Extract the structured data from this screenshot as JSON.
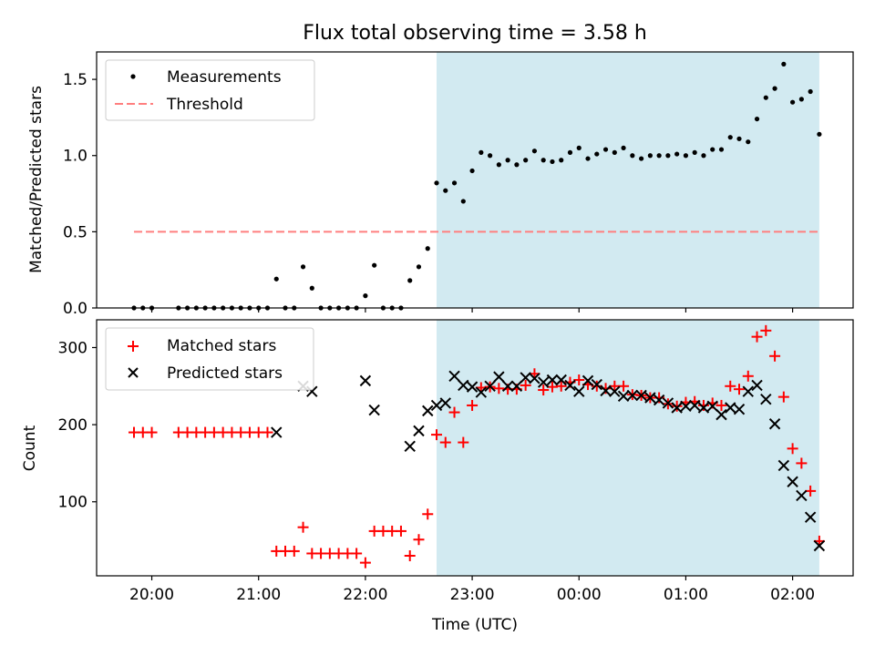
{
  "title": "Flux total observing time = 3.58 h",
  "xlabel": "Time (UTC)",
  "x_ticks": [
    "20:00",
    "21:00",
    "22:00",
    "23:00",
    "00:00",
    "01:00",
    "02:00"
  ],
  "colors": {
    "shade": "#add8e6",
    "threshold": "#ff7f7f",
    "measurements": "#000000",
    "matched": "#ff0000",
    "predicted": "#000000"
  },
  "chart_data": [
    {
      "type": "scatter",
      "panel": "top",
      "ylabel": "Matched/Predicted stars",
      "xlim": [
        "19:29",
        "26:34"
      ],
      "ylim": [
        0,
        1.68
      ],
      "y_ticks": [
        "0.0",
        "0.5",
        "1.0",
        "1.5"
      ],
      "legend_position": "upper-left",
      "legend": [
        "Measurements",
        "Threshold"
      ],
      "shaded_region": [
        "22:40",
        "26:15"
      ],
      "threshold": {
        "name": "Threshold",
        "y": 0.5,
        "x": [
          "19:50",
          "26:15"
        ]
      },
      "series": [
        {
          "name": "Measurements",
          "marker": "dot",
          "points": [
            [
              "19:50",
              0
            ],
            [
              "19:55",
              0
            ],
            [
              "20:00",
              0
            ],
            [
              "20:15",
              0
            ],
            [
              "20:20",
              0
            ],
            [
              "20:25",
              0
            ],
            [
              "20:30",
              0
            ],
            [
              "20:35",
              0
            ],
            [
              "20:40",
              0
            ],
            [
              "20:45",
              0
            ],
            [
              "20:50",
              0
            ],
            [
              "20:55",
              0
            ],
            [
              "21:00",
              0
            ],
            [
              "21:05",
              0
            ],
            [
              "21:10",
              0.19
            ],
            [
              "21:15",
              0
            ],
            [
              "21:20",
              0
            ],
            [
              "21:25",
              0.27
            ],
            [
              "21:30",
              0.13
            ],
            [
              "21:35",
              0
            ],
            [
              "21:40",
              0
            ],
            [
              "21:45",
              0
            ],
            [
              "21:50",
              0
            ],
            [
              "21:55",
              0
            ],
            [
              "22:00",
              0.08
            ],
            [
              "22:05",
              0.28
            ],
            [
              "22:10",
              0
            ],
            [
              "22:15",
              0
            ],
            [
              "22:20",
              0
            ],
            [
              "22:25",
              0.18
            ],
            [
              "22:30",
              0.27
            ],
            [
              "22:35",
              0.39
            ],
            [
              "22:40",
              0.82
            ],
            [
              "22:45",
              0.77
            ],
            [
              "22:50",
              0.82
            ],
            [
              "22:55",
              0.7
            ],
            [
              "23:00",
              0.9
            ],
            [
              "23:05",
              1.02
            ],
            [
              "23:10",
              1.0
            ],
            [
              "23:15",
              0.94
            ],
            [
              "23:20",
              0.97
            ],
            [
              "23:25",
              0.94
            ],
            [
              "23:30",
              0.97
            ],
            [
              "23:35",
              1.03
            ],
            [
              "23:40",
              0.97
            ],
            [
              "23:45",
              0.96
            ],
            [
              "23:50",
              0.97
            ],
            [
              "23:55",
              1.02
            ],
            [
              "24:00",
              1.05
            ],
            [
              "24:05",
              0.98
            ],
            [
              "24:10",
              1.01
            ],
            [
              "24:15",
              1.04
            ],
            [
              "24:20",
              1.02
            ],
            [
              "24:25",
              1.05
            ],
            [
              "24:30",
              1.0
            ],
            [
              "24:35",
              0.98
            ],
            [
              "24:40",
              1.0
            ],
            [
              "24:45",
              1.0
            ],
            [
              "24:50",
              1.0
            ],
            [
              "24:55",
              1.01
            ],
            [
              "25:00",
              1.0
            ],
            [
              "25:05",
              1.02
            ],
            [
              "25:10",
              1.0
            ],
            [
              "25:15",
              1.04
            ],
            [
              "25:20",
              1.04
            ],
            [
              "25:25",
              1.12
            ],
            [
              "25:30",
              1.11
            ],
            [
              "25:35",
              1.09
            ],
            [
              "25:40",
              1.24
            ],
            [
              "25:45",
              1.38
            ],
            [
              "25:50",
              1.44
            ],
            [
              "25:55",
              1.6
            ],
            [
              "26:00",
              1.35
            ],
            [
              "26:05",
              1.37
            ],
            [
              "26:10",
              1.42
            ],
            [
              "26:15",
              1.14
            ]
          ]
        }
      ]
    },
    {
      "type": "scatter",
      "panel": "bottom",
      "ylabel": "Count",
      "xlim": [
        "19:29",
        "26:34"
      ],
      "ylim": [
        4,
        336
      ],
      "y_ticks": [
        "100",
        "200",
        "300"
      ],
      "legend_position": "upper-left",
      "legend": [
        "Matched stars",
        "Predicted stars"
      ],
      "shaded_region": [
        "22:40",
        "26:15"
      ],
      "series": [
        {
          "name": "Matched stars",
          "marker": "plus",
          "points": [
            [
              "19:50",
              190
            ],
            [
              "19:55",
              190
            ],
            [
              "20:00",
              190
            ],
            [
              "20:15",
              190
            ],
            [
              "20:20",
              190
            ],
            [
              "20:25",
              190
            ],
            [
              "20:30",
              190
            ],
            [
              "20:35",
              190
            ],
            [
              "20:40",
              190
            ],
            [
              "20:45",
              190
            ],
            [
              "20:50",
              190
            ],
            [
              "20:55",
              190
            ],
            [
              "21:00",
              190
            ],
            [
              "21:05",
              190
            ],
            [
              "21:10",
              36
            ],
            [
              "21:15",
              36
            ],
            [
              "21:20",
              36
            ],
            [
              "21:25",
              67
            ],
            [
              "21:30",
              33
            ],
            [
              "21:35",
              33
            ],
            [
              "21:40",
              33
            ],
            [
              "21:45",
              33
            ],
            [
              "21:50",
              33
            ],
            [
              "21:55",
              33
            ],
            [
              "22:00",
              21
            ],
            [
              "22:05",
              62
            ],
            [
              "22:10",
              62
            ],
            [
              "22:15",
              62
            ],
            [
              "22:20",
              62
            ],
            [
              "22:25",
              30
            ],
            [
              "22:30",
              51
            ],
            [
              "22:35",
              84
            ],
            [
              "22:40",
              187
            ],
            [
              "22:45",
              177
            ],
            [
              "22:50",
              216
            ],
            [
              "22:55",
              177
            ],
            [
              "23:00",
              225
            ],
            [
              "23:05",
              248
            ],
            [
              "23:10",
              249
            ],
            [
              "23:15",
              247
            ],
            [
              "23:20",
              246
            ],
            [
              "23:25",
              246
            ],
            [
              "23:30",
              251
            ],
            [
              "23:35",
              266
            ],
            [
              "23:40",
              245
            ],
            [
              "23:45",
              249
            ],
            [
              "23:50",
              250
            ],
            [
              "23:55",
              255
            ],
            [
              "24:00",
              258
            ],
            [
              "24:05",
              252
            ],
            [
              "24:10",
              250
            ],
            [
              "24:15",
              247
            ],
            [
              "24:20",
              250
            ],
            [
              "24:25",
              250
            ],
            [
              "24:30",
              239
            ],
            [
              "24:35",
              238
            ],
            [
              "24:40",
              235
            ],
            [
              "24:45",
              235
            ],
            [
              "24:50",
              227
            ],
            [
              "24:55",
              224
            ],
            [
              "25:00",
              229
            ],
            [
              "25:05",
              230
            ],
            [
              "25:10",
              225
            ],
            [
              "25:15",
              228
            ],
            [
              "25:20",
              225
            ],
            [
              "25:25",
              250
            ],
            [
              "25:30",
              246
            ],
            [
              "25:35",
              263
            ],
            [
              "25:40",
              314
            ],
            [
              "25:45",
              322
            ],
            [
              "25:50",
              289
            ],
            [
              "25:55",
              236
            ],
            [
              "26:00",
              169
            ],
            [
              "26:05",
              150
            ],
            [
              "26:10",
              114
            ],
            [
              "26:15",
              49
            ]
          ]
        },
        {
          "name": "Predicted stars",
          "marker": "x",
          "points": [
            [
              "21:10",
              190
            ],
            [
              "21:25",
              250
            ],
            [
              "21:30",
              243
            ],
            [
              "22:00",
              257
            ],
            [
              "22:05",
              219
            ],
            [
              "22:25",
              172
            ],
            [
              "22:30",
              192
            ],
            [
              "22:35",
              218
            ],
            [
              "22:40",
              225
            ],
            [
              "22:45",
              228
            ],
            [
              "22:50",
              263
            ],
            [
              "22:55",
              251
            ],
            [
              "23:00",
              249
            ],
            [
              "23:05",
              242
            ],
            [
              "23:10",
              250
            ],
            [
              "23:15",
              262
            ],
            [
              "23:20",
              250
            ],
            [
              "23:25",
              250
            ],
            [
              "23:30",
              261
            ],
            [
              "23:35",
              260
            ],
            [
              "23:40",
              255
            ],
            [
              "23:45",
              258
            ],
            [
              "23:50",
              258
            ],
            [
              "23:55",
              251
            ],
            [
              "24:00",
              243
            ],
            [
              "24:05",
              257
            ],
            [
              "24:10",
              252
            ],
            [
              "24:15",
              244
            ],
            [
              "24:20",
              243
            ],
            [
              "24:25",
              237
            ],
            [
              "24:30",
              238
            ],
            [
              "24:35",
              238
            ],
            [
              "24:40",
              235
            ],
            [
              "24:45",
              232
            ],
            [
              "24:50",
              228
            ],
            [
              "24:55",
              222
            ],
            [
              "25:00",
              224
            ],
            [
              "25:05",
              225
            ],
            [
              "25:10",
              222
            ],
            [
              "25:15",
              224
            ],
            [
              "25:20",
              213
            ],
            [
              "25:25",
              222
            ],
            [
              "25:30",
              220
            ],
            [
              "25:35",
              243
            ],
            [
              "25:40",
              251
            ],
            [
              "25:45",
              233
            ],
            [
              "25:50",
              201
            ],
            [
              "25:55",
              147
            ],
            [
              "26:00",
              126
            ],
            [
              "26:05",
              108
            ],
            [
              "26:10",
              80
            ],
            [
              "26:15",
              43
            ]
          ]
        }
      ]
    }
  ]
}
